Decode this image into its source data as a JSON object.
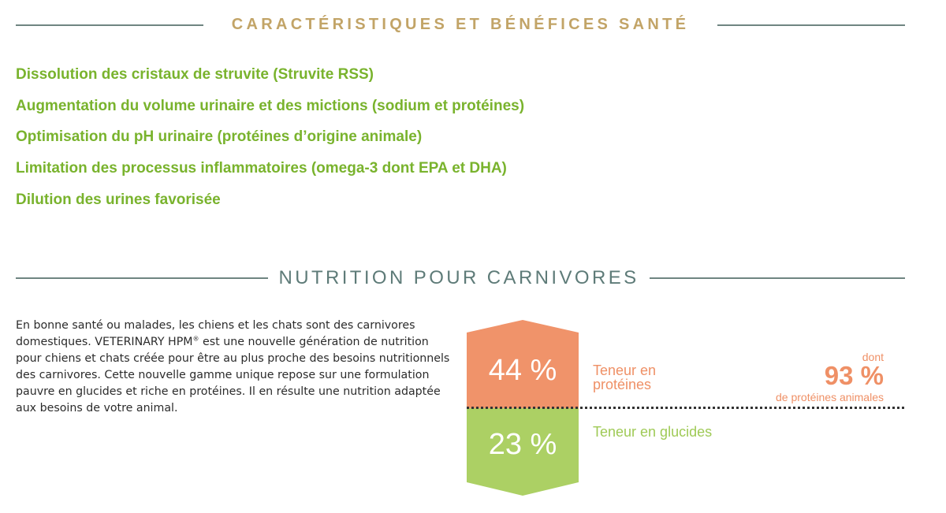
{
  "health_section": {
    "title": "CARACTÉRISTIQUES ET BÉNÉFICES SANTÉ",
    "benefits": [
      "Dissolution des cristaux de struvite (Struvite RSS)",
      "Augmentation du volume urinaire et des mictions (sodium et protéines)",
      "Optimisation du pH urinaire (protéines d’origine animale)",
      "Limitation des processus inflammatoires (omega-3 dont EPA et DHA)",
      "Dilution des urines favorisée"
    ]
  },
  "nutrition_section": {
    "title": "NUTRITION POUR CARNIVORES",
    "intro_before_mark": "En bonne santé ou malades, les chiens et les chats sont des carnivores domestiques. VETERINARY HPM",
    "registered_mark": "®",
    "intro_after_mark": " est une nouvelle génération de nutrition pour chiens et chats créée pour être au plus proche des besoins nutritionnels des carnivores. Cette nouvelle gamme unique repose sur une formulation pauvre en glucides et riche en protéines. Il en résulte une nutrition adaptée aux besoins de votre animal."
  },
  "infographic": {
    "protein_value": "44 %",
    "protein_label_line1": "Teneur en",
    "protein_label_line2": "protéines",
    "carb_value": "23 %",
    "carb_label": "Teneur en glucides",
    "dont_label": "dont",
    "animal_protein_value": "93 %",
    "animal_protein_label": "de protéines animales"
  },
  "colors": {
    "gold": "#c2a467",
    "rule_grey": "#6f8581",
    "heading_grey": "#5e7b78",
    "green": "#79b32d",
    "protein_orange": "#f0936a",
    "carb_green": "#acd064",
    "carb_label_green": "#9fca56",
    "dotted_line": "#333333"
  }
}
